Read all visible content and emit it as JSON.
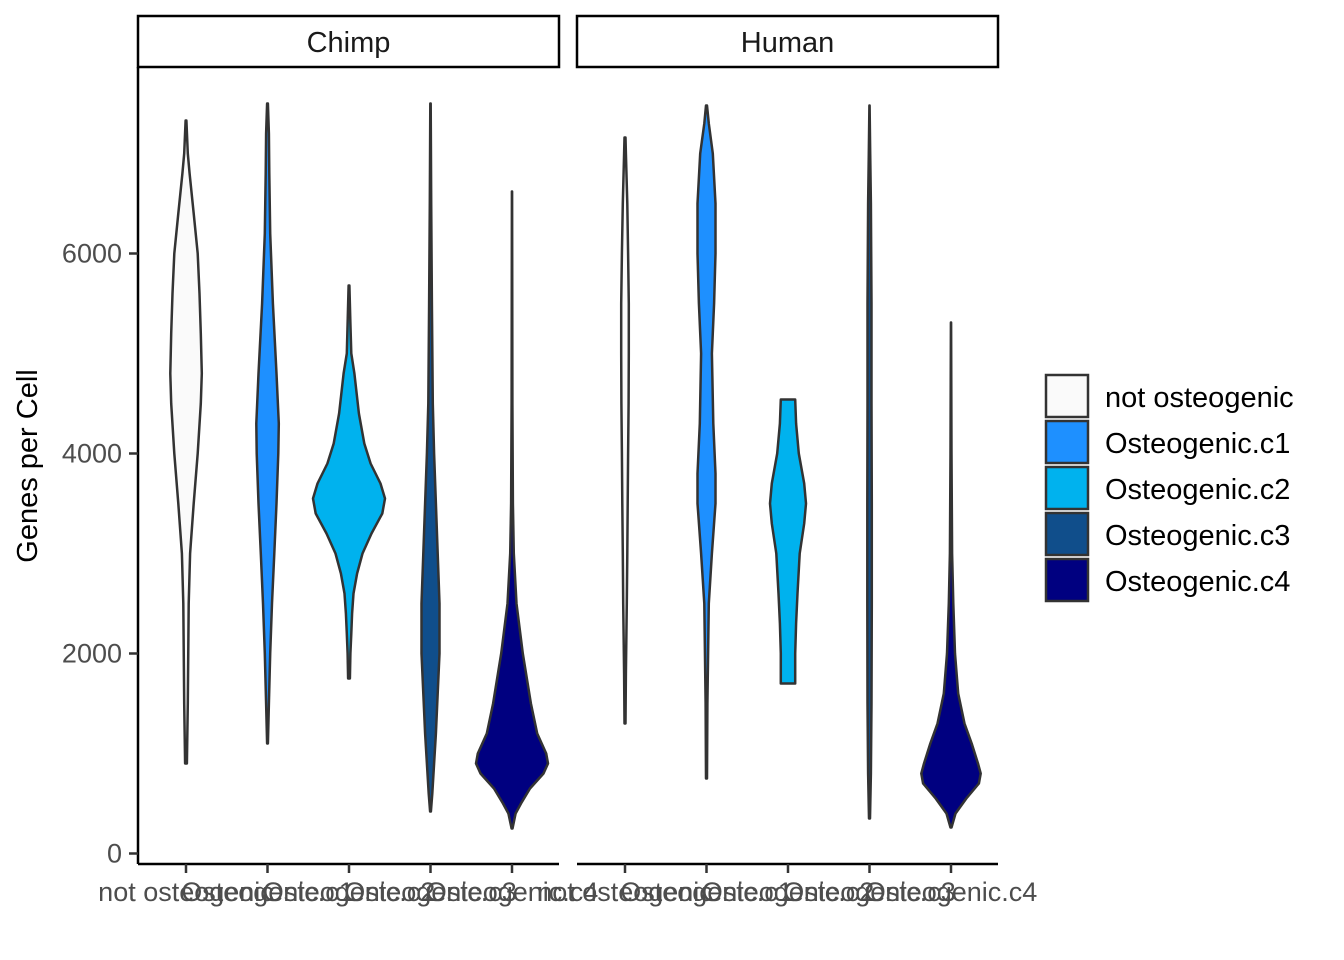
{
  "chart_data": {
    "type": "violin",
    "ylabel": "Genes per Cell",
    "xlabel": "",
    "ylim": [
      -150,
      7600
    ],
    "yticks": [
      0,
      2000,
      4000,
      6000
    ],
    "categories": [
      "not osteogenic",
      "Osteogenic.c1",
      "Osteogenic.c2",
      "Osteogenic.c3",
      "Osteogenic.c4"
    ],
    "grid": false,
    "legend_position": "right",
    "colors": {
      "not osteogenic": "#FAFAFA",
      "Osteogenic.c1": "#1E90FF",
      "Osteogenic.c2": "#00B2EE",
      "Osteogenic.c3": "#104E8B",
      "Osteogenic.c4": "#000080"
    },
    "panels": [
      {
        "name": "Chimp",
        "violins": [
          {
            "category": "not osteogenic",
            "min": 900,
            "max": 7330,
            "profile": [
              [
                900,
                0.02
              ],
              [
                1500,
                0.04
              ],
              [
                2500,
                0.06
              ],
              [
                3000,
                0.09
              ],
              [
                3500,
                0.17
              ],
              [
                4000,
                0.26
              ],
              [
                4500,
                0.33
              ],
              [
                4800,
                0.35
              ],
              [
                5200,
                0.33
              ],
              [
                5600,
                0.3
              ],
              [
                6000,
                0.26
              ],
              [
                6400,
                0.17
              ],
              [
                6800,
                0.08
              ],
              [
                7000,
                0.04
              ],
              [
                7330,
                0.01
              ]
            ]
          },
          {
            "category": "Osteogenic.c1",
            "min": 1100,
            "max": 7500,
            "profile": [
              [
                1100,
                0.01
              ],
              [
                1500,
                0.03
              ],
              [
                2000,
                0.06
              ],
              [
                2500,
                0.1
              ],
              [
                3000,
                0.15
              ],
              [
                3500,
                0.2
              ],
              [
                4000,
                0.24
              ],
              [
                4300,
                0.25
              ],
              [
                4800,
                0.2
              ],
              [
                5500,
                0.12
              ],
              [
                6200,
                0.06
              ],
              [
                6800,
                0.04
              ],
              [
                7200,
                0.03
              ],
              [
                7500,
                0.01
              ]
            ]
          },
          {
            "category": "Osteogenic.c2",
            "min": 1750,
            "max": 5680,
            "profile": [
              [
                1750,
                0.02
              ],
              [
                2000,
                0.03
              ],
              [
                2200,
                0.05
              ],
              [
                2400,
                0.07
              ],
              [
                2600,
                0.1
              ],
              [
                2800,
                0.18
              ],
              [
                3000,
                0.3
              ],
              [
                3200,
                0.5
              ],
              [
                3400,
                0.74
              ],
              [
                3550,
                0.8
              ],
              [
                3700,
                0.7
              ],
              [
                3900,
                0.48
              ],
              [
                4100,
                0.34
              ],
              [
                4400,
                0.22
              ],
              [
                4800,
                0.12
              ],
              [
                5000,
                0.05
              ],
              [
                5300,
                0.03
              ],
              [
                5680,
                0.01
              ]
            ]
          },
          {
            "category": "Osteogenic.c3",
            "min": 420,
            "max": 7500,
            "profile": [
              [
                420,
                0.01
              ],
              [
                600,
                0.04
              ],
              [
                900,
                0.08
              ],
              [
                1200,
                0.12
              ],
              [
                1600,
                0.16
              ],
              [
                2000,
                0.2
              ],
              [
                2500,
                0.2
              ],
              [
                3000,
                0.16
              ],
              [
                3500,
                0.12
              ],
              [
                4000,
                0.08
              ],
              [
                4500,
                0.05
              ],
              [
                5500,
                0.03
              ],
              [
                6500,
                0.015
              ],
              [
                7500,
                0.005
              ]
            ]
          },
          {
            "category": "Osteogenic.c4",
            "min": 250,
            "max": 6620,
            "profile": [
              [
                250,
                0.01
              ],
              [
                400,
                0.08
              ],
              [
                500,
                0.2
              ],
              [
                650,
                0.4
              ],
              [
                800,
                0.7
              ],
              [
                900,
                0.8
              ],
              [
                1000,
                0.76
              ],
              [
                1200,
                0.56
              ],
              [
                1500,
                0.42
              ],
              [
                2000,
                0.24
              ],
              [
                2500,
                0.1
              ],
              [
                3000,
                0.04
              ],
              [
                3500,
                0.02
              ],
              [
                4500,
                0.008
              ],
              [
                6620,
                0.003
              ]
            ]
          }
        ]
      },
      {
        "name": "Human",
        "violins": [
          {
            "category": "not osteogenic",
            "min": 1300,
            "max": 7160,
            "profile": [
              [
                1300,
                0.01
              ],
              [
                1800,
                0.02
              ],
              [
                2500,
                0.04
              ],
              [
                3000,
                0.05
              ],
              [
                3500,
                0.06
              ],
              [
                4000,
                0.07
              ],
              [
                4500,
                0.08
              ],
              [
                5000,
                0.085
              ],
              [
                5500,
                0.085
              ],
              [
                6000,
                0.07
              ],
              [
                6500,
                0.05
              ],
              [
                7000,
                0.02
              ],
              [
                7160,
                0.01
              ]
            ]
          },
          {
            "category": "Osteogenic.c1",
            "min": 750,
            "max": 7480,
            "profile": [
              [
                750,
                0.01
              ],
              [
                1500,
                0.02
              ],
              [
                2500,
                0.05
              ],
              [
                3000,
                0.12
              ],
              [
                3500,
                0.2
              ],
              [
                3800,
                0.2
              ],
              [
                4300,
                0.15
              ],
              [
                5000,
                0.12
              ],
              [
                5500,
                0.17
              ],
              [
                6000,
                0.2
              ],
              [
                6500,
                0.2
              ],
              [
                7000,
                0.14
              ],
              [
                7300,
                0.05
              ],
              [
                7480,
                0.01
              ]
            ]
          },
          {
            "category": "Osteogenic.c2",
            "min": 1700,
            "max": 4540,
            "profile": [
              [
                1700,
                0.16
              ],
              [
                1800,
                0.16
              ],
              [
                2000,
                0.16
              ],
              [
                2300,
                0.18
              ],
              [
                2600,
                0.21
              ],
              [
                3000,
                0.26
              ],
              [
                3300,
                0.36
              ],
              [
                3500,
                0.4
              ],
              [
                3700,
                0.36
              ],
              [
                4000,
                0.24
              ],
              [
                4300,
                0.18
              ],
              [
                4540,
                0.16
              ]
            ]
          },
          {
            "category": "Osteogenic.c3",
            "min": 350,
            "max": 7480,
            "profile": [
              [
                350,
                0.01
              ],
              [
                800,
                0.03
              ],
              [
                1500,
                0.045
              ],
              [
                2500,
                0.05
              ],
              [
                3500,
                0.05
              ],
              [
                4500,
                0.045
              ],
              [
                5500,
                0.045
              ],
              [
                6500,
                0.03
              ],
              [
                7000,
                0.015
              ],
              [
                7480,
                0.003
              ]
            ]
          },
          {
            "category": "Osteogenic.c4",
            "min": 260,
            "max": 5310,
            "profile": [
              [
                260,
                0.01
              ],
              [
                400,
                0.1
              ],
              [
                550,
                0.34
              ],
              [
                700,
                0.62
              ],
              [
                800,
                0.66
              ],
              [
                900,
                0.6
              ],
              [
                1100,
                0.46
              ],
              [
                1300,
                0.3
              ],
              [
                1600,
                0.16
              ],
              [
                2000,
                0.09
              ],
              [
                2500,
                0.05
              ],
              [
                3000,
                0.025
              ],
              [
                4000,
                0.01
              ],
              [
                5310,
                0.002
              ]
            ]
          }
        ]
      }
    ]
  }
}
